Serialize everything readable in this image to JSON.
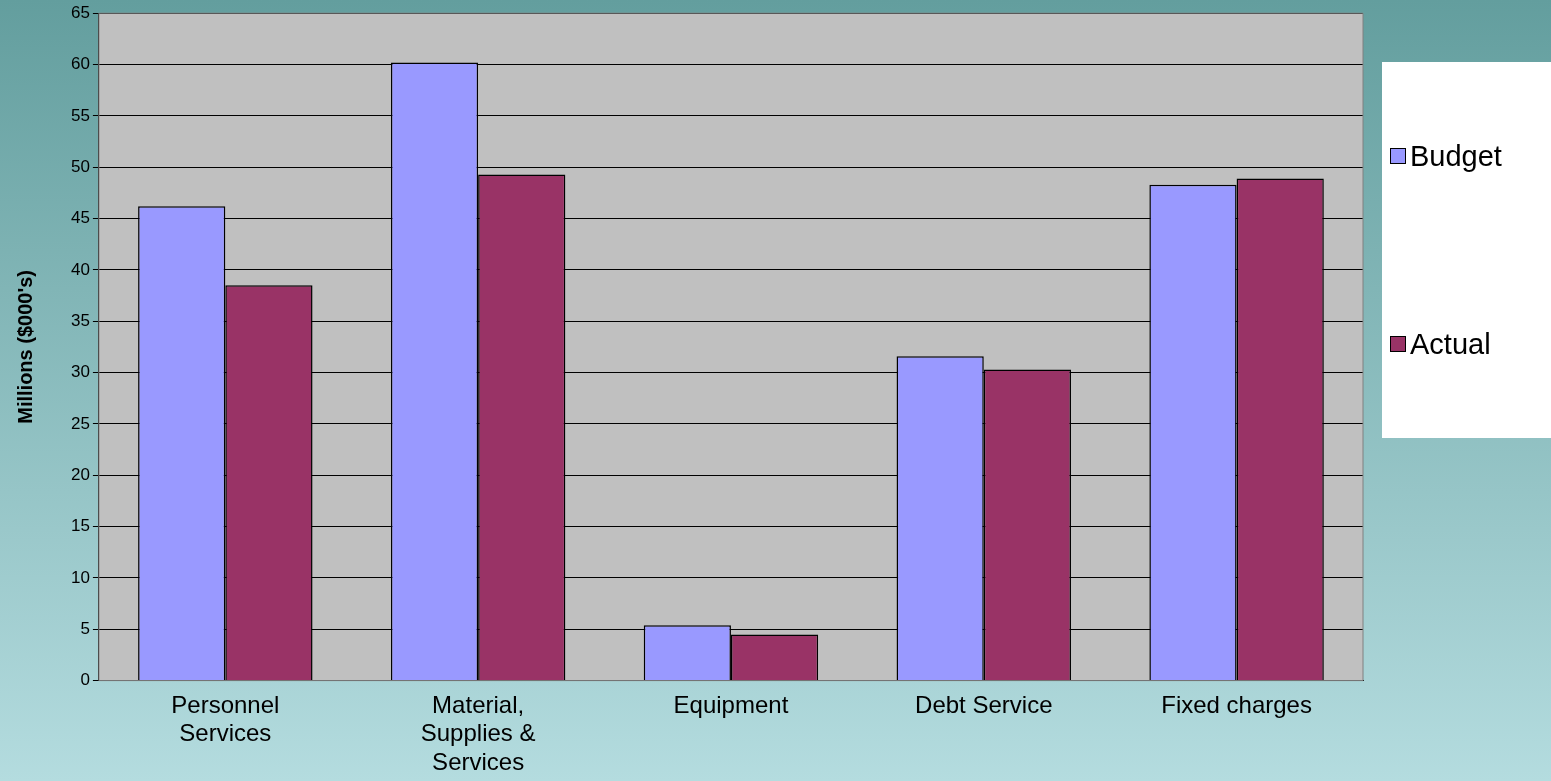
{
  "chart_data": {
    "type": "bar",
    "ylabel": "Millions ($000's)",
    "categories": [
      "Personnel Services",
      "Material, Supplies & Services",
      "Equipment",
      "Debt Service",
      "Fixed charges"
    ],
    "series": [
      {
        "name": "Budget",
        "color": "#9999ff",
        "values": [
          46.2,
          60.2,
          5.4,
          31.6,
          48.3
        ]
      },
      {
        "name": "Actual",
        "color": "#993366",
        "values": [
          38.5,
          49.3,
          4.5,
          30.3,
          48.9
        ]
      }
    ],
    "ylim": [
      0,
      65
    ],
    "yticks": [
      0,
      5,
      10,
      15,
      20,
      25,
      30,
      35,
      40,
      45,
      50,
      55,
      60,
      65
    ],
    "grid": "y",
    "legend": "right"
  }
}
